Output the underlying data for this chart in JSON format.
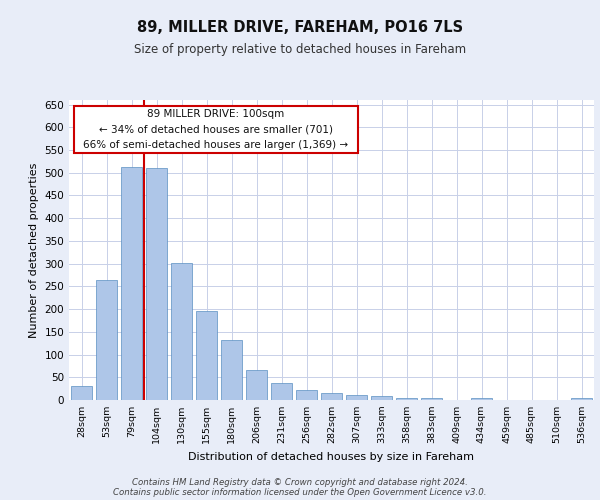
{
  "title1": "89, MILLER DRIVE, FAREHAM, PO16 7LS",
  "title2": "Size of property relative to detached houses in Fareham",
  "xlabel": "Distribution of detached houses by size in Fareham",
  "ylabel": "Number of detached properties",
  "categories": [
    "28sqm",
    "53sqm",
    "79sqm",
    "104sqm",
    "130sqm",
    "155sqm",
    "180sqm",
    "206sqm",
    "231sqm",
    "256sqm",
    "282sqm",
    "307sqm",
    "333sqm",
    "358sqm",
    "383sqm",
    "409sqm",
    "434sqm",
    "459sqm",
    "485sqm",
    "510sqm",
    "536sqm"
  ],
  "values": [
    30,
    263,
    512,
    510,
    302,
    196,
    132,
    65,
    37,
    22,
    15,
    10,
    8,
    5,
    5,
    1,
    5,
    1,
    1,
    1,
    5
  ],
  "bar_color": "#aec6e8",
  "bar_edge_color": "#5a8fc2",
  "vline_color": "#cc0000",
  "vline_position": 2.5,
  "ylim": [
    0,
    660
  ],
  "yticks": [
    0,
    50,
    100,
    150,
    200,
    250,
    300,
    350,
    400,
    450,
    500,
    550,
    600,
    650
  ],
  "annotation_text": "89 MILLER DRIVE: 100sqm\n← 34% of detached houses are smaller (701)\n66% of semi-detached houses are larger (1,369) →",
  "annotation_box_color": "#ffffff",
  "annotation_box_edge": "#cc0000",
  "footer": "Contains HM Land Registry data © Crown copyright and database right 2024.\nContains public sector information licensed under the Open Government Licence v3.0.",
  "bg_color": "#e8edf8",
  "plot_bg_color": "#ffffff",
  "grid_color": "#c8d0e8"
}
